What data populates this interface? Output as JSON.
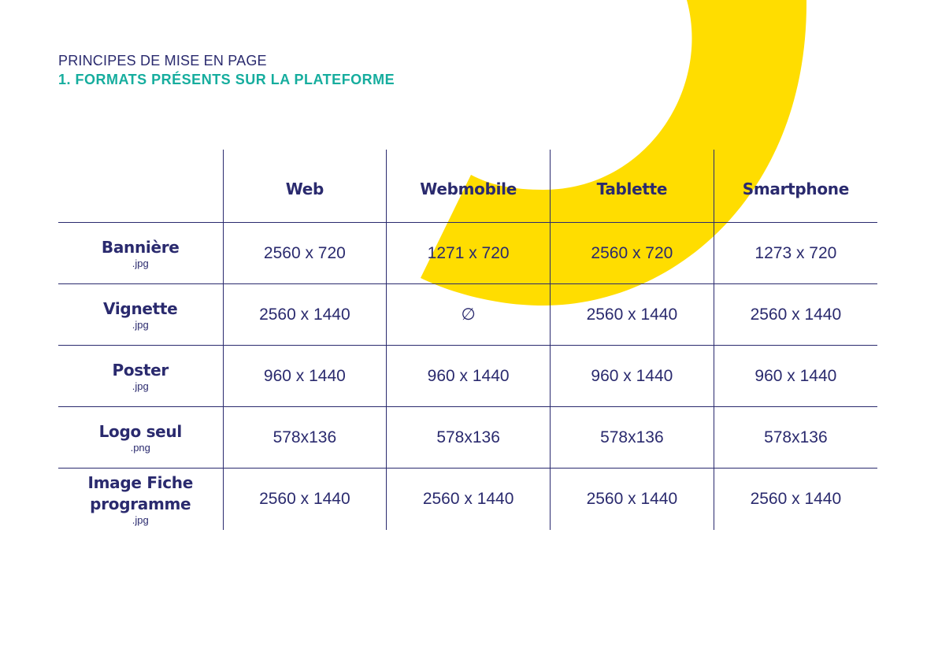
{
  "header": {
    "kicker": "PRINCIPES DE MISE EN PAGE",
    "section": "1. FORMATS PRÉSENTS SUR LA PLATEFORME"
  },
  "colors": {
    "accent_yellow": "#ffdd00",
    "navy": "#2a2a6e",
    "teal": "#16ad9e"
  },
  "table": {
    "columns": [
      "",
      "Web",
      "Webmobile",
      "Tablette",
      "Smartphone"
    ],
    "rows": [
      {
        "name": "Bannière",
        "ext": ".jpg",
        "values": [
          "2560 x 720",
          "1271 x 720",
          "2560 x 720",
          "1273 x 720"
        ]
      },
      {
        "name": "Vignette",
        "ext": ".jpg",
        "values": [
          "2560 x 1440",
          "∅",
          "2560 x 1440",
          "2560 x 1440"
        ]
      },
      {
        "name": "Poster",
        "ext": ".jpg",
        "values": [
          "960 x 1440",
          "960 x 1440",
          "960 x 1440",
          "960 x 1440"
        ]
      },
      {
        "name": "Logo seul",
        "ext": ".png",
        "values": [
          "578x136",
          "578x136",
          "578x136",
          "578x136"
        ]
      },
      {
        "name": "Image Fiche programme",
        "ext": ".jpg",
        "values": [
          "2560 x 1440",
          "2560 x 1440",
          "2560 x 1440",
          "2560 x 1440"
        ]
      }
    ]
  }
}
